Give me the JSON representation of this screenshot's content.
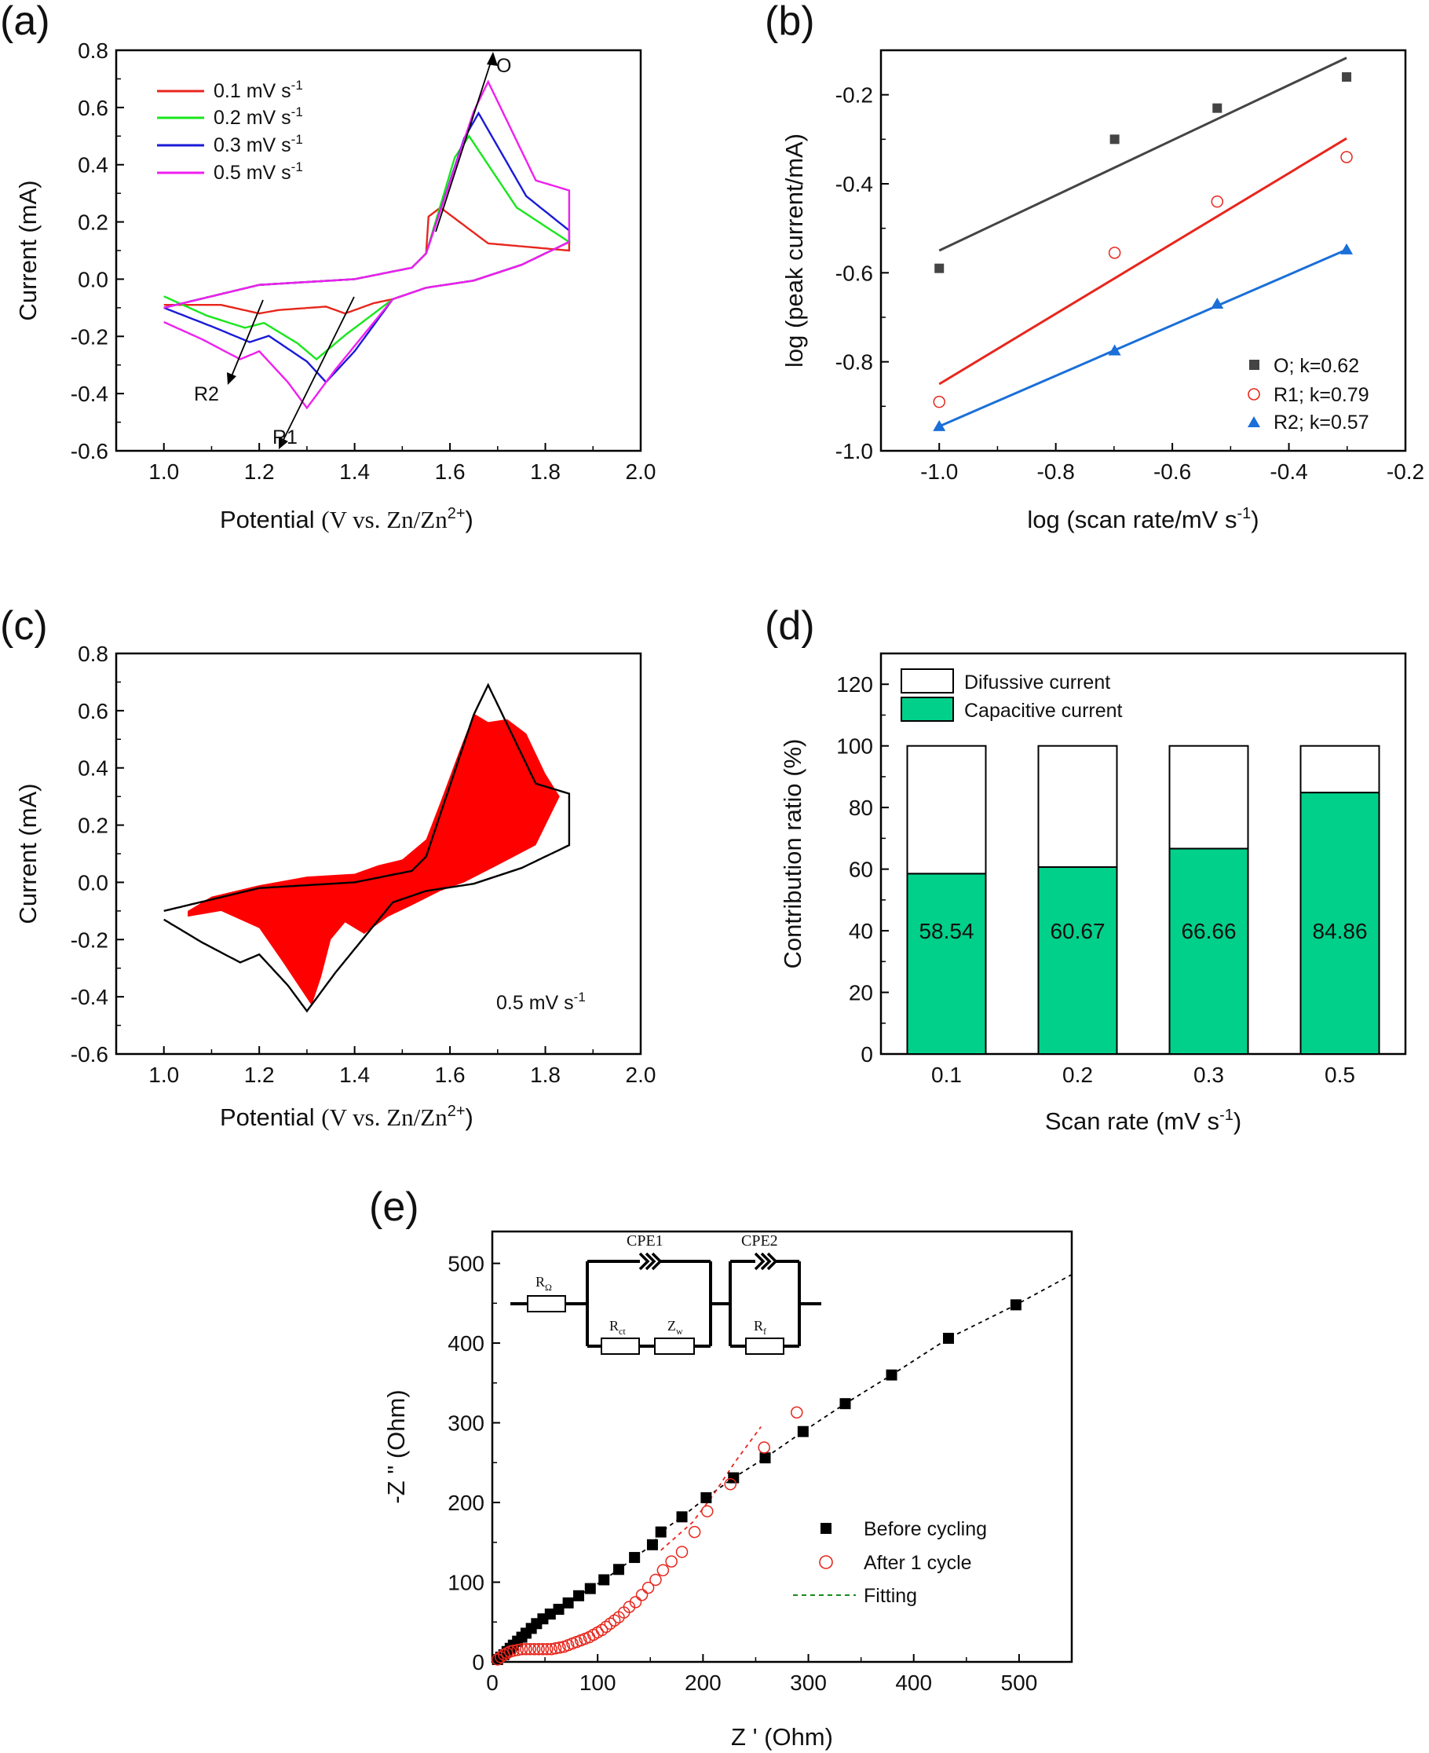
{
  "chart_data": [
    {
      "panel": "(a)",
      "type": "line",
      "xlabel_main": "Potential ",
      "xlabel_unit": "(V vs. Zn/Zn",
      "xlabel_sup": "2+",
      "xlabel_close": ")",
      "ylabel": "Current (mA)",
      "xlim": [
        0.9,
        2.0
      ],
      "ylim": [
        -0.6,
        0.8
      ],
      "xticks": [
        "1.0",
        "1.2",
        "1.4",
        "1.6",
        "1.8",
        "2.0"
      ],
      "yticks": [
        "-0.6",
        "-0.4",
        "-0.2",
        "0.0",
        "0.2",
        "0.4",
        "0.6",
        "0.8"
      ],
      "legend_position": "top-left",
      "annotations": [
        "O",
        "R1",
        "R2"
      ],
      "series": [
        {
          "name": "0.1 mV s",
          "name_sup": "-1",
          "color": "#e8261c",
          "anodic_peak": [
            1.58,
            0.25
          ],
          "cathodic_peaks": [
            [
              1.2,
              -0.12
            ],
            [
              1.38,
              -0.12
            ]
          ]
        },
        {
          "name": "0.2 mV s",
          "name_sup": "-1",
          "color": "#19e61c",
          "anodic_peak": [
            1.64,
            0.5
          ],
          "cathodic_peaks": [
            [
              1.17,
              -0.17
            ],
            [
              1.32,
              -0.28
            ]
          ]
        },
        {
          "name": "0.3 mV s",
          "name_sup": "-1",
          "color": "#1a1ad8",
          "anodic_peak": [
            1.66,
            0.58
          ],
          "cathodic_peaks": [
            [
              1.18,
              -0.22
            ],
            [
              1.34,
              -0.36
            ]
          ]
        },
        {
          "name": "0.5 mV s",
          "name_sup": "-1",
          "color": "#f01ff0",
          "anodic_peak": [
            1.68,
            0.69
          ],
          "cathodic_peaks": [
            [
              1.16,
              -0.28
            ],
            [
              1.3,
              -0.45
            ]
          ]
        }
      ]
    },
    {
      "panel": "(b)",
      "type": "scatter",
      "xlabel": "log (scan rate/mV s",
      "xlabel_sup": "-1",
      "xlabel_close": ")",
      "ylabel": "log (peak current/mA)",
      "xlim": [
        -1.1,
        -0.2
      ],
      "ylim": [
        -1.0,
        -0.1
      ],
      "xticks": [
        "-1.0",
        "-0.8",
        "-0.6",
        "-0.4",
        "-0.2"
      ],
      "yticks": [
        "-1.0",
        "-0.8",
        "-0.6",
        "-0.4",
        "-0.2"
      ],
      "legend_position": "bottom-right",
      "series": [
        {
          "name": "O;  k=0.62",
          "color": "#444444",
          "marker": "square",
          "x": [
            -1.0,
            -0.699,
            -0.523,
            -0.301
          ],
          "y": [
            -0.59,
            -0.3,
            -0.23,
            -0.16
          ],
          "fit": [
            [
              -1.0,
              -0.55
            ],
            [
              -0.301,
              -0.117
            ]
          ]
        },
        {
          "name": "R1; k=0.79",
          "color": "#e8261c",
          "marker": "circle-open",
          "x": [
            -1.0,
            -0.699,
            -0.523,
            -0.301
          ],
          "y": [
            -0.89,
            -0.555,
            -0.44,
            -0.34
          ],
          "fit": [
            [
              -1.0,
              -0.85
            ],
            [
              -0.301,
              -0.298
            ]
          ]
        },
        {
          "name": "R2; k=0.57",
          "color": "#1a6fd8",
          "marker": "triangle",
          "x": [
            -1.0,
            -0.699,
            -0.523,
            -0.301
          ],
          "y": [
            -0.945,
            -0.775,
            -0.67,
            -0.548
          ],
          "fit": [
            [
              -1.0,
              -0.945
            ],
            [
              -0.301,
              -0.548
            ]
          ]
        }
      ]
    },
    {
      "panel": "(c)",
      "type": "area",
      "xlabel_main": "Potential ",
      "xlabel_unit": "(V vs. Zn/Zn",
      "xlabel_sup": "2+",
      "xlabel_close": ")",
      "ylabel": "Current (mA)",
      "xlim": [
        0.9,
        2.0
      ],
      "ylim": [
        -0.6,
        0.8
      ],
      "xticks": [
        "1.0",
        "1.2",
        "1.4",
        "1.6",
        "1.8",
        "2.0"
      ],
      "yticks": [
        "-0.6",
        "-0.4",
        "-0.2",
        "0.0",
        "0.2",
        "0.4",
        "0.6",
        "0.8"
      ],
      "annotation": "0.5 mV s",
      "annotation_sup": "-1",
      "outline_color": "#000000",
      "fill_color": "#ff0000"
    },
    {
      "panel": "(d)",
      "type": "bar",
      "xlabel": "Scan rate (mV s",
      "xlabel_sup": "-1",
      "xlabel_close": ")",
      "ylabel": "Contribution ratio (%)",
      "ylim": [
        0,
        130
      ],
      "categories": [
        "0.1",
        "0.2",
        "0.3",
        "0.5"
      ],
      "yticks": [
        "0",
        "20",
        "40",
        "60",
        "80",
        "100",
        "120"
      ],
      "legend_position": "top-left",
      "series": [
        {
          "name": "Difussive current",
          "color": "#ffffff",
          "values": [
            41.46,
            39.33,
            33.34,
            15.14
          ]
        },
        {
          "name": "Capacitive current",
          "color": "#00d08a",
          "values": [
            58.54,
            60.67,
            66.66,
            84.86
          ]
        }
      ],
      "data_labels": [
        "58.54",
        "60.67",
        "66.66",
        "84.86"
      ]
    },
    {
      "panel": "(e)",
      "type": "scatter",
      "xlabel": "Z ' (Ohm)",
      "ylabel": "-Z \" (Ohm)",
      "xlim": [
        0,
        550
      ],
      "ylim": [
        0,
        540
      ],
      "xticks": [
        "0",
        "100",
        "200",
        "300",
        "400",
        "500"
      ],
      "yticks": [
        "0",
        "100",
        "200",
        "300",
        "400",
        "500"
      ],
      "legend_position": "bottom-right",
      "circuit_labels": {
        "r_ohm": "R",
        "r_ohm_sub": "Ω",
        "cpe1": "CPE1",
        "cpe2": "CPE2",
        "rct": "R",
        "rct_sub": "ct",
        "zw": "Z",
        "zw_sub": "w",
        "rf": "R",
        "rf_sub": "f"
      },
      "series": [
        {
          "name": "Before cycling",
          "color": "#000000",
          "marker": "square",
          "x": [
            5,
            8,
            11,
            14,
            17,
            20,
            24,
            28,
            32,
            37,
            42,
            48,
            55,
            63,
            72,
            82,
            93,
            106,
            120,
            135,
            152,
            160,
            180,
            203,
            229,
            259,
            295,
            335,
            379,
            433,
            497
          ],
          "y": [
            3,
            6,
            9,
            13,
            17,
            21,
            26,
            31,
            36,
            42,
            48,
            54,
            60,
            66,
            74,
            83,
            92,
            103,
            116,
            131,
            147,
            163,
            182,
            206,
            231,
            256,
            289,
            324,
            360,
            406,
            448
          ]
        },
        {
          "name": "After 1 cycle",
          "color": "#e8261c",
          "marker": "circle-open",
          "x": [
            5,
            8,
            11,
            14,
            17,
            20,
            24,
            28,
            32,
            36,
            40,
            44,
            48,
            52,
            56,
            60,
            64,
            68,
            72,
            76,
            80,
            84,
            88,
            92,
            96,
            100,
            104,
            108,
            112,
            116,
            120,
            125,
            130,
            136,
            142,
            148,
            155,
            162,
            170,
            180,
            192,
            204,
            226,
            258,
            289
          ],
          "y": [
            3,
            6,
            9,
            11,
            13,
            14,
            15,
            16,
            16,
            16,
            16,
            16,
            16,
            16,
            16,
            17,
            18,
            19,
            21,
            23,
            25,
            27,
            29,
            31,
            34,
            37,
            40,
            44,
            48,
            52,
            56,
            62,
            69,
            75,
            84,
            93,
            103,
            115,
            126,
            138,
            163,
            189,
            223,
            269,
            313
          ]
        },
        {
          "name": "Fitting",
          "color": "#1a8a1a",
          "line_style": "dashed"
        }
      ]
    }
  ]
}
